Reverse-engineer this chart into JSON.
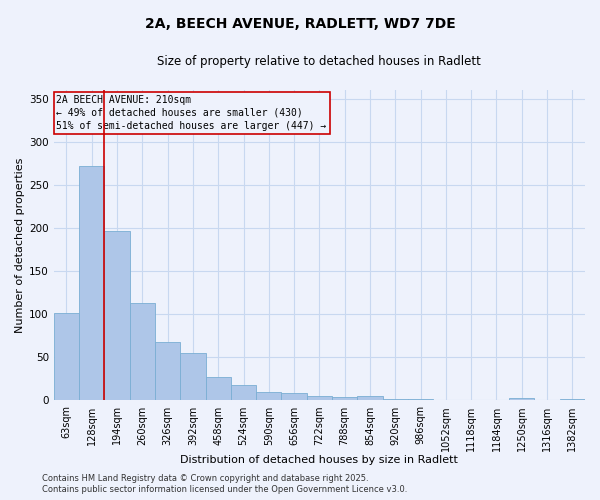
{
  "title_line1": "2A, BEECH AVENUE, RADLETT, WD7 7DE",
  "title_line2": "Size of property relative to detached houses in Radlett",
  "xlabel": "Distribution of detached houses by size in Radlett",
  "ylabel": "Number of detached properties",
  "footer": "Contains HM Land Registry data © Crown copyright and database right 2025.\nContains public sector information licensed under the Open Government Licence v3.0.",
  "bins": [
    "63sqm",
    "128sqm",
    "194sqm",
    "260sqm",
    "326sqm",
    "392sqm",
    "458sqm",
    "524sqm",
    "590sqm",
    "656sqm",
    "722sqm",
    "788sqm",
    "854sqm",
    "920sqm",
    "986sqm",
    "1052sqm",
    "1118sqm",
    "1184sqm",
    "1250sqm",
    "1316sqm",
    "1382sqm"
  ],
  "values": [
    101,
    272,
    197,
    113,
    68,
    55,
    27,
    18,
    10,
    9,
    5,
    4,
    5,
    2,
    2,
    1,
    1,
    0,
    3,
    1,
    2
  ],
  "bar_color": "#aec6e8",
  "bar_edge_color": "#7aaed4",
  "grid_color": "#c8d8f0",
  "background_color": "#eef2fc",
  "vline_x_index": 2,
  "vline_color": "#cc0000",
  "annotation_box_text": "2A BEECH AVENUE: 210sqm\n← 49% of detached houses are smaller (430)\n51% of semi-detached houses are larger (447) →",
  "ylim": [
    0,
    360
  ],
  "yticks": [
    0,
    50,
    100,
    150,
    200,
    250,
    300,
    350
  ],
  "title_fontsize": 10,
  "subtitle_fontsize": 8.5,
  "xlabel_fontsize": 8,
  "ylabel_fontsize": 8,
  "tick_fontsize": 7,
  "ann_fontsize": 7,
  "footer_fontsize": 6
}
